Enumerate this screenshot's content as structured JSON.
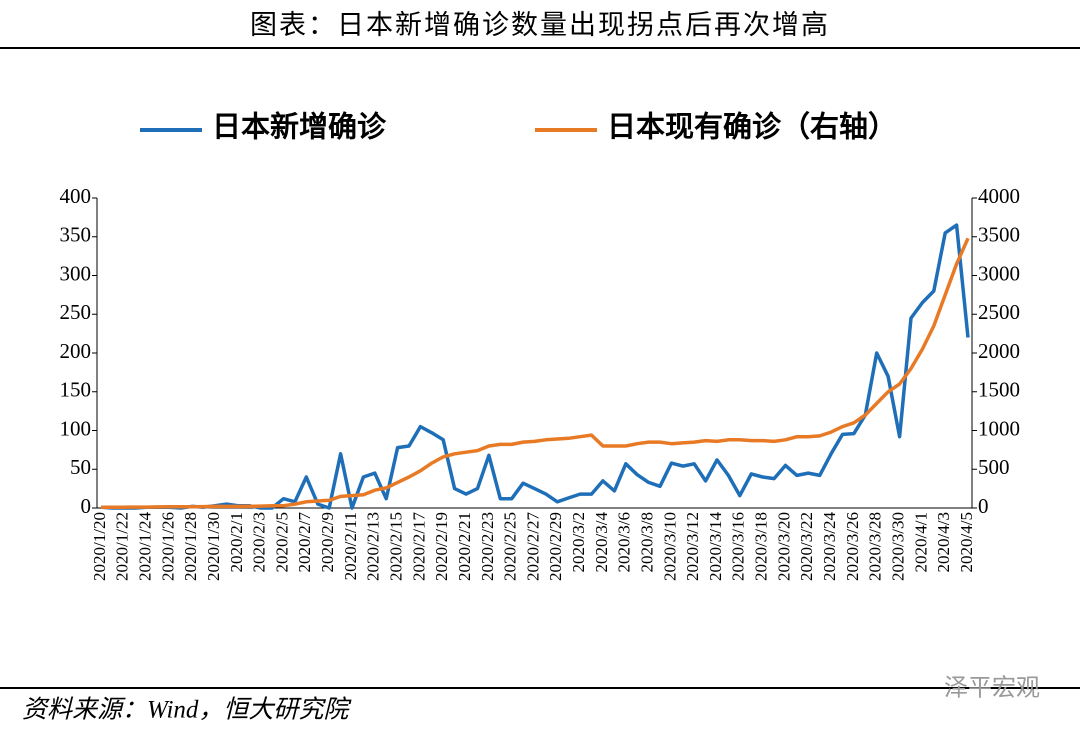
{
  "chart_data": {
    "type": "line",
    "title": "图表：日本新增确诊数量出现拐点后再次增高",
    "source": "资料来源：Wind，恒大研究院",
    "watermark": "泽平宏观",
    "categories": [
      "2020/1/20",
      null,
      "2020/1/22",
      null,
      "2020/1/24",
      null,
      "2020/1/26",
      null,
      "2020/1/28",
      null,
      "2020/1/30",
      null,
      "2020/2/1",
      null,
      "2020/2/3",
      null,
      "2020/2/5",
      null,
      "2020/2/7",
      null,
      "2020/2/9",
      null,
      "2020/2/11",
      null,
      "2020/2/13",
      null,
      "2020/2/15",
      null,
      "2020/2/17",
      null,
      "2020/2/19",
      null,
      "2020/2/21",
      null,
      "2020/2/23",
      null,
      "2020/2/25",
      null,
      "2020/2/27",
      null,
      "2020/2/29",
      null,
      "2020/3/2",
      null,
      "2020/3/4",
      null,
      "2020/3/6",
      null,
      "2020/3/8",
      null,
      "2020/3/10",
      null,
      "2020/3/12",
      null,
      "2020/3/14",
      null,
      "2020/3/16",
      null,
      "2020/3/18",
      null,
      "2020/3/20",
      null,
      "2020/3/22",
      null,
      "2020/3/24",
      null,
      "2020/3/26",
      null,
      "2020/3/28",
      null,
      "2020/3/30",
      null,
      "2020/4/1",
      null,
      "2020/4/3",
      null,
      "2020/4/5"
    ],
    "series": [
      {
        "name": "日本新增确诊",
        "color": "#1f6fb8",
        "axis": "y",
        "values": [
          1,
          0,
          0,
          0,
          1,
          1,
          1,
          0,
          2,
          1,
          3,
          5,
          3,
          3,
          0,
          0,
          12,
          8,
          40,
          5,
          0,
          70,
          0,
          40,
          45,
          12,
          78,
          80,
          105,
          97,
          88,
          25,
          18,
          25,
          68,
          12,
          12,
          32,
          25,
          18,
          8,
          13,
          18,
          18,
          35,
          22,
          57,
          43,
          33,
          28,
          58,
          54,
          57,
          35,
          62,
          42,
          16,
          44,
          40,
          38,
          55,
          42,
          45,
          42,
          70,
          95,
          96,
          120,
          200,
          170,
          92,
          245,
          265,
          280,
          355,
          365,
          220
        ]
      },
      {
        "name": "日本现有确诊（右轴）",
        "color": "#e87a26",
        "axis": "y2",
        "values": [
          10,
          10,
          10,
          12,
          12,
          14,
          15,
          15,
          17,
          18,
          20,
          20,
          20,
          22,
          25,
          28,
          30,
          50,
          80,
          90,
          100,
          150,
          160,
          170,
          230,
          260,
          330,
          400,
          480,
          580,
          660,
          700,
          720,
          740,
          800,
          820,
          820,
          850,
          860,
          880,
          890,
          900,
          920,
          940,
          800,
          800,
          800,
          830,
          850,
          850,
          830,
          840,
          850,
          870,
          860,
          880,
          880,
          870,
          870,
          860,
          880,
          920,
          920,
          930,
          980,
          1050,
          1100,
          1200,
          1350,
          1500,
          1600,
          1800,
          2050,
          2350,
          2750,
          3150,
          3480
        ]
      }
    ],
    "ylim": [
      0,
      400
    ],
    "yticks": [
      0,
      50,
      100,
      150,
      200,
      250,
      300,
      350,
      400
    ],
    "y2lim": [
      0,
      4000
    ],
    "y2ticks": [
      0,
      500,
      1000,
      1500,
      2000,
      2500,
      3000,
      3500,
      4000
    ]
  }
}
